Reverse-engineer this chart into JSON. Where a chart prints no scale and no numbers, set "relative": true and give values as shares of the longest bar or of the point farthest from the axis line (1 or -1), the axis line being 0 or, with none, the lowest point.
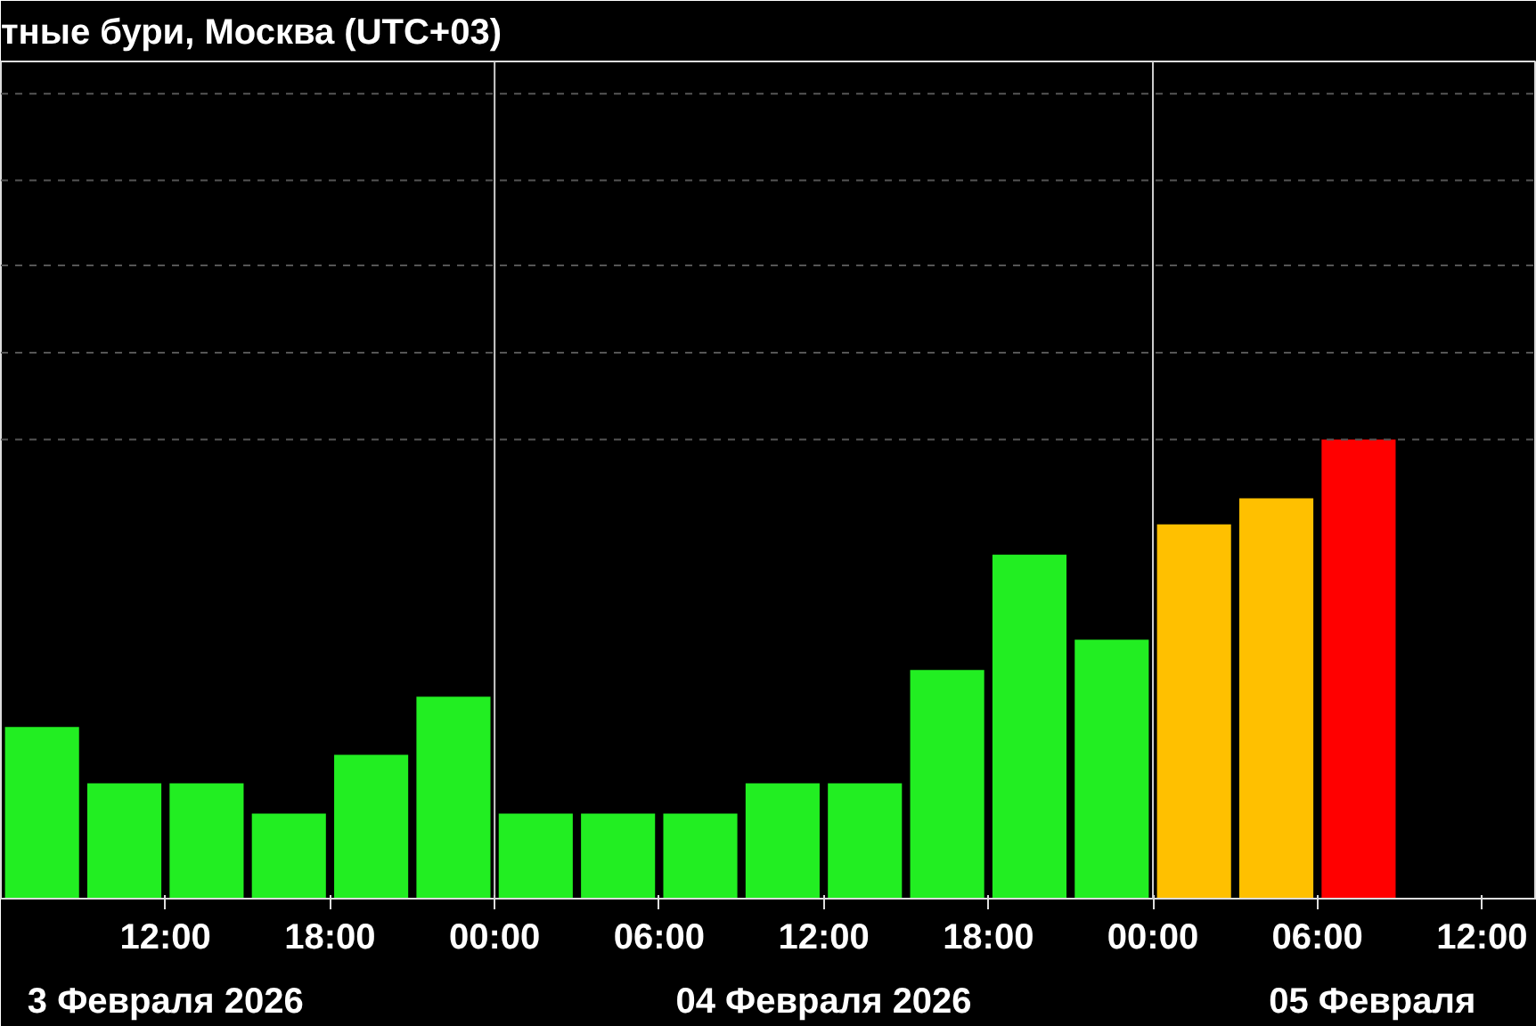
{
  "chart_data": {
    "type": "bar",
    "title": "тные бури, Москва (UTC+03)",
    "relative": true,
    "x": [
      "2026-02-03T07:30",
      "2026-02-03T10:30",
      "2026-02-03T13:30",
      "2026-02-03T16:30",
      "2026-02-03T19:30",
      "2026-02-03T22:30",
      "2026-02-04T01:30",
      "2026-02-04T04:30",
      "2026-02-04T07:30",
      "2026-02-04T10:30",
      "2026-02-04T13:30",
      "2026-02-04T16:30",
      "2026-02-04T19:30",
      "2026-02-04T22:30",
      "2026-02-05T01:30",
      "2026-02-05T04:30",
      "2026-02-05T07:30"
    ],
    "values": [
      0.374,
      0.251,
      0.251,
      0.185,
      0.313,
      0.44,
      0.185,
      0.185,
      0.185,
      0.251,
      0.251,
      0.498,
      0.749,
      0.564,
      0.815,
      0.872,
      1
    ],
    "colors": [
      "#22ee22",
      "#22ee22",
      "#22ee22",
      "#22ee22",
      "#22ee22",
      "#22ee22",
      "#22ee22",
      "#22ee22",
      "#22ee22",
      "#22ee22",
      "#22ee22",
      "#22ee22",
      "#22ee22",
      "#22ee22",
      "#ffc000",
      "#ffc000",
      "#ff0000"
    ],
    "xlim": [
      "2026-02-03T06:00",
      "2026-02-05T14:00"
    ],
    "xticks": [
      {
        "value": "2026-02-03T12:00",
        "label": "12:00"
      },
      {
        "value": "2026-02-03T18:00",
        "label": "18:00"
      },
      {
        "value": "2026-02-04T00:00",
        "label": "00:00"
      },
      {
        "value": "2026-02-04T06:00",
        "label": "06:00"
      },
      {
        "value": "2026-02-04T12:00",
        "label": "12:00"
      },
      {
        "value": "2026-02-04T18:00",
        "label": "18:00"
      },
      {
        "value": "2026-02-05T00:00",
        "label": "00:00"
      },
      {
        "value": "2026-02-05T06:00",
        "label": "06:00"
      },
      {
        "value": "2026-02-05T12:00",
        "label": "12:00"
      }
    ],
    "x2lim": [
      "2026-02-03T06:00",
      "2026-02-05T14:00"
    ],
    "x2ticks": [
      {
        "value": "2026-02-03T12:00",
        "label": "3 Февраля 2026"
      },
      {
        "value": "2026-02-04T12:00",
        "label": "04 Февраля 2026"
      },
      {
        "value": "2026-02-05T08:00",
        "label": "05 Февраля"
      }
    ],
    "ref_lines": [
      {
        "axis": "x",
        "value": "2026-02-04T00:00",
        "color": "#cccccc"
      },
      {
        "axis": "x",
        "value": "2026-02-05T00:00",
        "color": "#cccccc"
      },
      {
        "axis": "y",
        "value": 1.0,
        "color": "#555555",
        "line_style": "dashed"
      },
      {
        "axis": "y",
        "value": 1.189,
        "color": "#555555",
        "line_style": "dashed"
      },
      {
        "axis": "y",
        "value": 1.379,
        "color": "#555555",
        "line_style": "dashed"
      },
      {
        "axis": "y",
        "value": 1.564,
        "color": "#555555",
        "line_style": "dashed"
      },
      {
        "axis": "y",
        "value": 1.753,
        "color": "#555555",
        "line_style": "dashed"
      }
    ],
    "grid": false
  }
}
